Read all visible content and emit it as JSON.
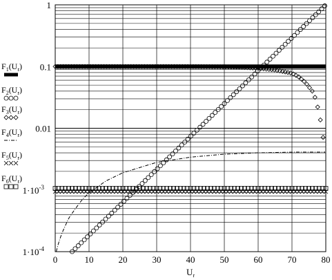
{
  "chart_data": {
    "type": "line",
    "title": "",
    "xlabel": "U",
    "xlabel_subscript": "r",
    "ylabel": "",
    "xlim": [
      0,
      80
    ],
    "ylim": [
      0.0001,
      1
    ],
    "yscale": "log",
    "grid": true,
    "x_ticks": [
      0,
      10,
      20,
      30,
      40,
      50,
      60,
      70,
      80
    ],
    "x_tick_labels": [
      "0",
      "10",
      "20",
      "30",
      "40",
      "50",
      "60",
      "70",
      "80"
    ],
    "y_ticks": [
      0.0001,
      0.001,
      0.01,
      0.1,
      1
    ],
    "y_tick_labels": [
      "1·10",
      "1·10",
      "0.01",
      "0.1",
      "1"
    ],
    "y_tick_exponents": [
      "-4",
      "-3",
      "",
      "",
      ""
    ],
    "legend_position": "left",
    "series": [
      {
        "name": "F1(Ur)",
        "style": "thick-solid",
        "color": "#000000",
        "x": [
          0,
          80
        ],
        "y": [
          0.1,
          0.1
        ]
      },
      {
        "name": "F2(Ur)",
        "style": "circles",
        "color": "#000000",
        "x": [
          5,
          80
        ],
        "y": [
          0.0001,
          1
        ]
      },
      {
        "name": "F3(Ur)",
        "style": "diamonds",
        "color": "#000000",
        "x": [
          0,
          20,
          40,
          50,
          55,
          60,
          65,
          70,
          72,
          74,
          76,
          77,
          78,
          79,
          79.5
        ],
        "y": [
          0.1,
          0.1,
          0.1,
          0.099,
          0.097,
          0.094,
          0.088,
          0.078,
          0.068,
          0.055,
          0.04,
          0.03,
          0.018,
          0.009,
          0.005
        ]
      },
      {
        "name": "F4(Ur)",
        "style": "dash-dot",
        "color": "#000000",
        "x": [
          0.3,
          1,
          2,
          4,
          6,
          8,
          10,
          15,
          20,
          30,
          40,
          50,
          60,
          70,
          80
        ],
        "y": [
          0.0001,
          0.00014,
          0.0002,
          0.00035,
          0.0005,
          0.0007,
          0.0009,
          0.0014,
          0.0019,
          0.0028,
          0.0034,
          0.0038,
          0.004,
          0.0041,
          0.0041
        ]
      },
      {
        "name": "F5(Ur)",
        "style": "crosses",
        "color": "#000000",
        "x": [
          0,
          80
        ],
        "y": [
          0.00094,
          0.00094
        ]
      },
      {
        "name": "F6(Ur)",
        "style": "boxes",
        "color": "#000000",
        "x": [
          0,
          80
        ],
        "y": [
          0.00106,
          0.00106
        ]
      }
    ]
  }
}
